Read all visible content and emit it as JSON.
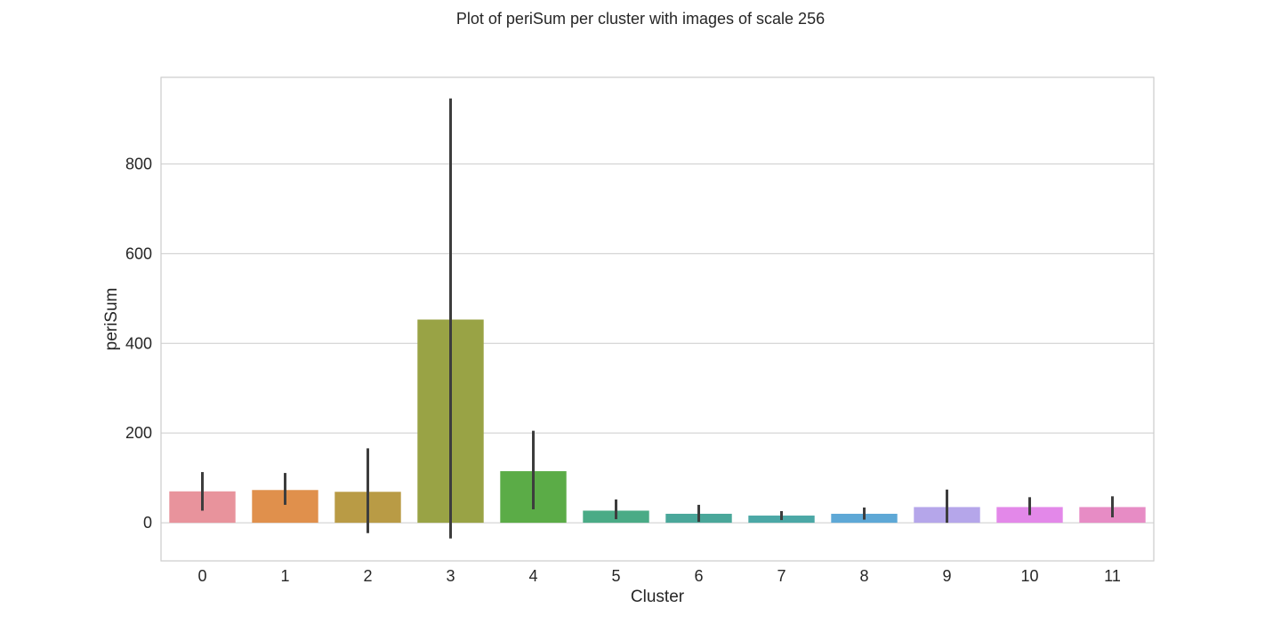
{
  "chart_data": {
    "type": "bar",
    "title": "Plot of periSum per cluster with images of scale 256",
    "xlabel": "Cluster",
    "ylabel": "periSum",
    "categories": [
      "0",
      "1",
      "2",
      "3",
      "4",
      "5",
      "6",
      "7",
      "8",
      "9",
      "10",
      "11"
    ],
    "values": [
      70,
      73,
      69,
      453,
      115,
      27,
      20,
      16,
      20,
      35,
      35,
      35
    ],
    "error_low": [
      27,
      40,
      -23,
      -35,
      30,
      8,
      2,
      6,
      7,
      0,
      17,
      12
    ],
    "error_high": [
      113,
      111,
      166,
      946,
      205,
      52,
      40,
      26,
      34,
      74,
      57,
      59
    ],
    "colors": [
      "#e8939c",
      "#e0904c",
      "#b99b45",
      "#99a345",
      "#5bac47",
      "#4aab86",
      "#4aa79a",
      "#4ba8a6",
      "#5ea8d6",
      "#b5a6ea",
      "#e388e9",
      "#e78cc5"
    ],
    "error_bar_color": "#3d3d3d",
    "yticks": [
      0,
      200,
      400,
      600,
      800
    ],
    "ylim": [
      -85,
      993
    ],
    "grid": "y",
    "style": "whitegrid"
  }
}
